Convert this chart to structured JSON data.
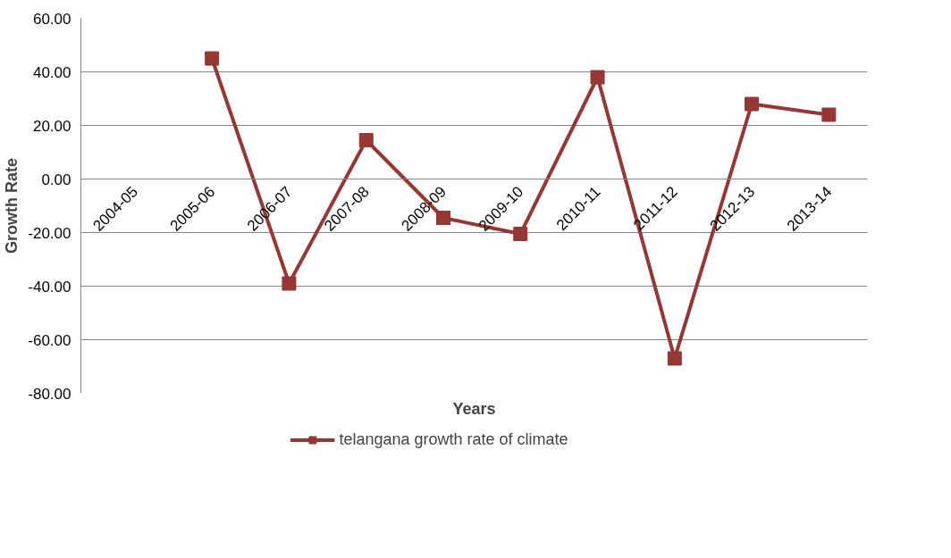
{
  "chart_data": {
    "type": "line",
    "xlabel": "Years",
    "ylabel": "Growth Rate",
    "categories": [
      "2004-05",
      "2005-06",
      "2006-07",
      "2007-08",
      "2008-09",
      "2009-10",
      "2010-11",
      "2011-12",
      "2012-13",
      "2013-14"
    ],
    "series": [
      {
        "name": "telangana growth rate of climate",
        "color": "#953735",
        "values": [
          null,
          45,
          -39,
          14.5,
          -14.5,
          -20.5,
          38,
          -67,
          28,
          24
        ]
      }
    ],
    "ylim": [
      -80,
      60
    ],
    "yticks": [
      {
        "value": -80,
        "label": "-80.00"
      },
      {
        "value": -60,
        "label": "-60.00"
      },
      {
        "value": -40,
        "label": "-40.00"
      },
      {
        "value": -20,
        "label": "-20.00"
      },
      {
        "value": 0,
        "label": "0.00"
      },
      {
        "value": 20,
        "label": "20.00"
      },
      {
        "value": 40,
        "label": "40.00"
      },
      {
        "value": 60,
        "label": "60.00"
      }
    ],
    "grid": "y",
    "legend": "bottom",
    "marker": "square",
    "line_style": "solid"
  }
}
